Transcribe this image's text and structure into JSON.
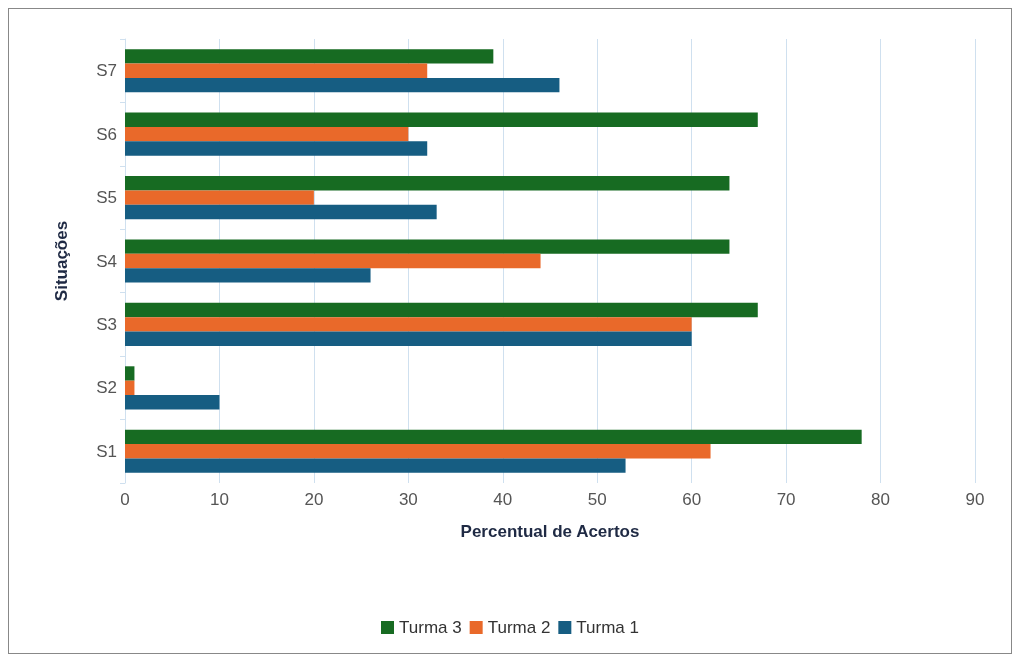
{
  "chart_data": {
    "type": "bar",
    "orientation": "horizontal",
    "xlabel": "Percentual de Acertos",
    "ylabel": "Situações",
    "categories": [
      "S7",
      "S6",
      "S5",
      "S4",
      "S3",
      "S2",
      "S1"
    ],
    "series": [
      {
        "name": "Turma 3",
        "color": "#176b22",
        "values": [
          39,
          67,
          64,
          64,
          67,
          1,
          78
        ]
      },
      {
        "name": "Turma 2",
        "color": "#e9692a",
        "values": [
          32,
          30,
          20,
          44,
          60,
          1,
          62
        ]
      },
      {
        "name": "Turma 1",
        "color": "#165d82",
        "values": [
          46,
          32,
          33,
          26,
          60,
          10,
          53
        ]
      }
    ],
    "xlim": [
      0,
      90
    ],
    "xticks": [
      0,
      10,
      20,
      30,
      40,
      50,
      60,
      70,
      80,
      90
    ],
    "grid": "x",
    "legend": "bottom"
  }
}
